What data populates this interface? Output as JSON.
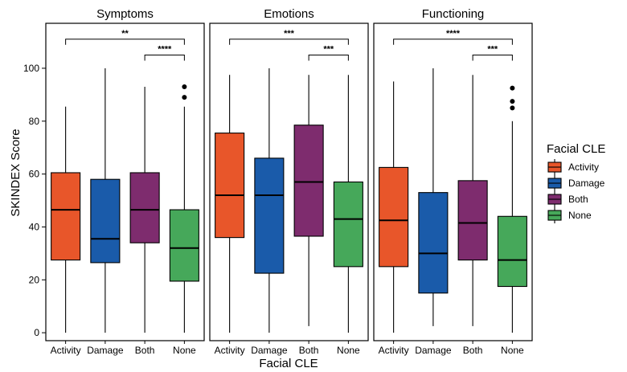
{
  "chart_data": {
    "type": "boxplot",
    "title": "",
    "xlabel": "Facial CLE",
    "ylabel": "SKINDEX Score",
    "ylim": [
      -3,
      117
    ],
    "yticks": [
      0,
      20,
      40,
      60,
      80,
      100
    ],
    "categories": [
      "Activity",
      "Damage",
      "Both",
      "None"
    ],
    "colors": {
      "Activity": "#E8562A",
      "Damage": "#1A5BAA",
      "Both": "#7E2C6E",
      "None": "#46A85A"
    },
    "legend": {
      "title": "Facial CLE",
      "placement": "right",
      "entries": [
        "Activity",
        "Damage",
        "Both",
        "None"
      ]
    },
    "facets": [
      {
        "name": "Symptoms",
        "boxes": [
          {
            "category": "Activity",
            "whisker_low": 0,
            "q1": 27.5,
            "median": 46.5,
            "q3": 60.5,
            "whisker_high": 85.5,
            "outliers": []
          },
          {
            "category": "Damage",
            "whisker_low": 0,
            "q1": 26.5,
            "median": 35.5,
            "q3": 58,
            "whisker_high": 100,
            "outliers": []
          },
          {
            "category": "Both",
            "whisker_low": 0,
            "q1": 34,
            "median": 46.5,
            "q3": 60.5,
            "whisker_high": 93,
            "outliers": []
          },
          {
            "category": "None",
            "whisker_low": 0,
            "q1": 19.5,
            "median": 32,
            "q3": 46.5,
            "whisker_high": 85.5,
            "outliers": [
              89,
              93
            ]
          }
        ],
        "brackets": [
          {
            "from": "Activity",
            "to": "None",
            "label": "**",
            "y": 111
          },
          {
            "from": "Both",
            "to": "None",
            "label": "****",
            "y": 105
          }
        ]
      },
      {
        "name": "Emotions",
        "boxes": [
          {
            "category": "Activity",
            "whisker_low": 0,
            "q1": 36,
            "median": 52,
            "q3": 75.5,
            "whisker_high": 97.5,
            "outliers": []
          },
          {
            "category": "Damage",
            "whisker_low": 0,
            "q1": 22.5,
            "median": 52,
            "q3": 66,
            "whisker_high": 100,
            "outliers": []
          },
          {
            "category": "Both",
            "whisker_low": 2.5,
            "q1": 36.5,
            "median": 57,
            "q3": 78.5,
            "whisker_high": 97.5,
            "outliers": []
          },
          {
            "category": "None",
            "whisker_low": 0,
            "q1": 25,
            "median": 43,
            "q3": 57,
            "whisker_high": 97.5,
            "outliers": []
          }
        ],
        "brackets": [
          {
            "from": "Activity",
            "to": "None",
            "label": "***",
            "y": 111
          },
          {
            "from": "Both",
            "to": "None",
            "label": "***",
            "y": 105
          }
        ]
      },
      {
        "name": "Functioning",
        "boxes": [
          {
            "category": "Activity",
            "whisker_low": 0,
            "q1": 25,
            "median": 42.5,
            "q3": 62.5,
            "whisker_high": 95,
            "outliers": []
          },
          {
            "category": "Damage",
            "whisker_low": 2.5,
            "q1": 15,
            "median": 30,
            "q3": 53,
            "whisker_high": 100,
            "outliers": []
          },
          {
            "category": "Both",
            "whisker_low": 2.5,
            "q1": 27.5,
            "median": 41.5,
            "q3": 57.5,
            "whisker_high": 97.5,
            "outliers": []
          },
          {
            "category": "None",
            "whisker_low": 0,
            "q1": 17.5,
            "median": 27.5,
            "q3": 44,
            "whisker_high": 80,
            "outliers": [
              85,
              87.5,
              92.5
            ]
          }
        ],
        "brackets": [
          {
            "from": "Activity",
            "to": "None",
            "label": "****",
            "y": 111
          },
          {
            "from": "Both",
            "to": "None",
            "label": "***",
            "y": 105
          }
        ]
      }
    ]
  }
}
